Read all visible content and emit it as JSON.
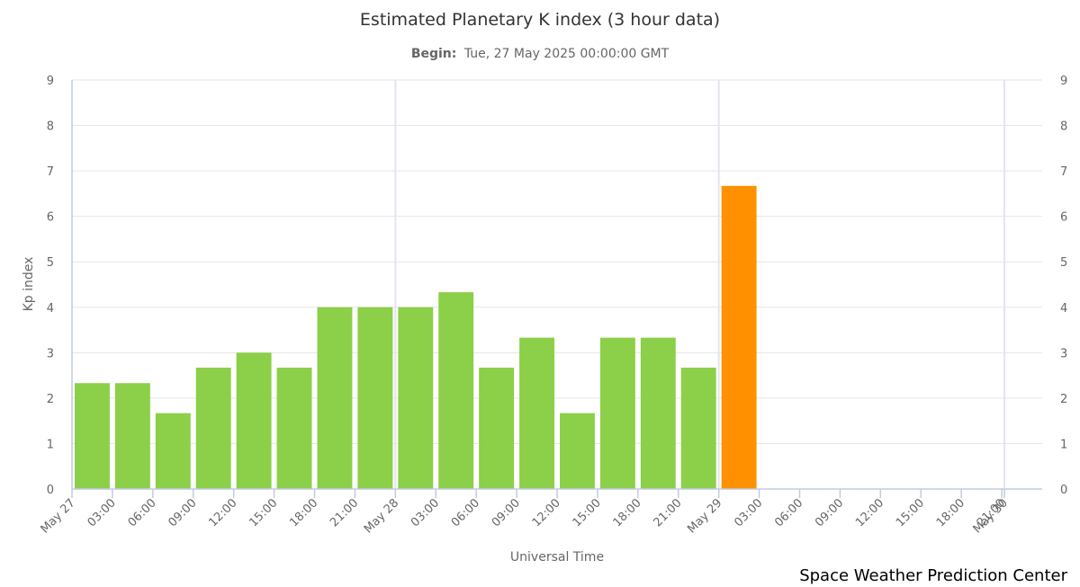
{
  "chart_data": {
    "type": "bar",
    "title": "Estimated Planetary K index (3 hour data)",
    "subtitle_label": "Begin:",
    "subtitle_value": "Tue, 27 May 2025 00:00:00 GMT",
    "xlabel": "Universal Time",
    "ylabel": "Kp index",
    "ylim": [
      0,
      9
    ],
    "y_ticks": [
      "0",
      "1",
      "2",
      "3",
      "4",
      "5",
      "6",
      "7",
      "8",
      "9"
    ],
    "x_ticks": [
      "May 27",
      "03:00",
      "06:00",
      "09:00",
      "12:00",
      "15:00",
      "18:00",
      "21:00",
      "May 28",
      "03:00",
      "06:00",
      "09:00",
      "12:00",
      "15:00",
      "18:00",
      "21:00",
      "May 29",
      "03:00",
      "06:00",
      "09:00",
      "12:00",
      "15:00",
      "18:00",
      "21:00",
      "May 30"
    ],
    "x_range_hours": [
      0,
      72
    ],
    "bar_hours": [
      0,
      3,
      6,
      9,
      12,
      15,
      18,
      21,
      24,
      27,
      30,
      33,
      36,
      39,
      42,
      45,
      48
    ],
    "values": [
      2.33,
      2.33,
      1.67,
      2.67,
      3.0,
      2.67,
      4.0,
      4.0,
      4.0,
      4.33,
      2.67,
      3.33,
      1.67,
      3.33,
      3.33,
      2.67,
      6.67
    ],
    "colors": [
      "#8ccf48",
      "#8ccf48",
      "#8ccf48",
      "#8ccf48",
      "#8ccf48",
      "#8ccf48",
      "#8ccf48",
      "#8ccf48",
      "#8ccf48",
      "#8ccf48",
      "#8ccf48",
      "#8ccf48",
      "#8ccf48",
      "#8ccf48",
      "#8ccf48",
      "#8ccf48",
      "#ff9100"
    ],
    "grid": true,
    "legend": "none"
  },
  "credit": "Space Weather Prediction Center"
}
